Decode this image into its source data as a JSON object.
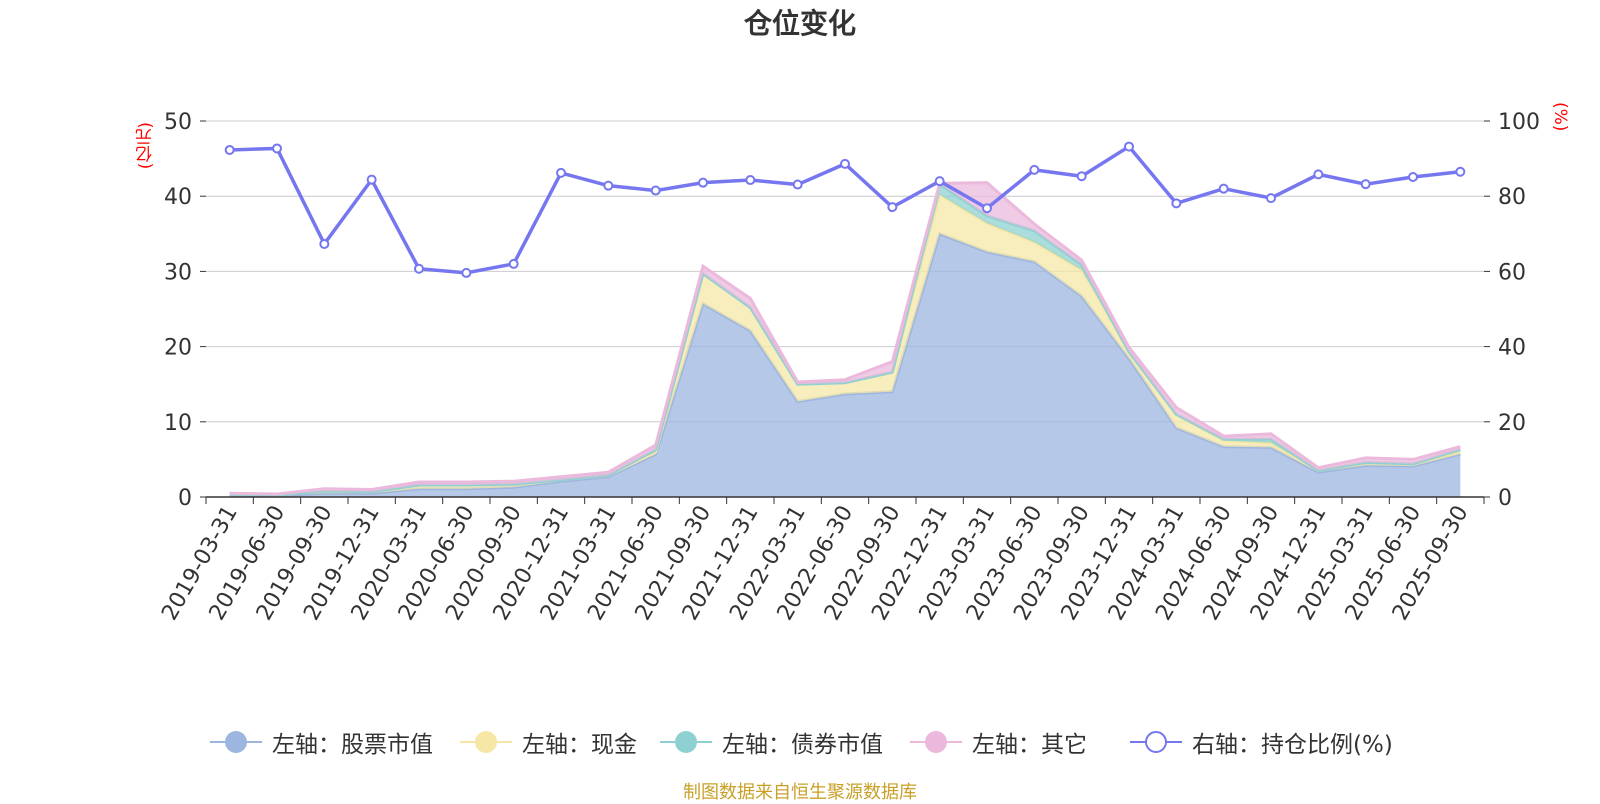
{
  "chart_data": {
    "type": "area",
    "title": "仓位变化",
    "left_unit": "(亿元)",
    "right_unit": "(%)",
    "left_ylim": [
      0,
      50
    ],
    "right_ylim": [
      0,
      100
    ],
    "left_ticks": [
      "0",
      "10",
      "20",
      "30",
      "40",
      "50"
    ],
    "right_ticks": [
      "0",
      "20",
      "40",
      "60",
      "80",
      "100"
    ],
    "categories": [
      "2019-03-31",
      "2019-06-30",
      "2019-09-30",
      "2019-12-31",
      "2020-03-31",
      "2020-06-30",
      "2020-09-30",
      "2020-12-31",
      "2021-03-31",
      "2021-06-30",
      "2021-09-30",
      "2021-12-31",
      "2022-03-31",
      "2022-06-30",
      "2022-09-30",
      "2022-12-31",
      "2023-03-31",
      "2023-06-30",
      "2023-09-30",
      "2023-12-31",
      "2024-03-31",
      "2024-06-30",
      "2024-09-30",
      "2024-12-31",
      "2025-03-31",
      "2025-06-30",
      "2025-09-30"
    ],
    "series": [
      {
        "name": "左轴：股票市值",
        "axis": "left",
        "stack": true,
        "color": "#9db6e0",
        "values": [
          0.3,
          0.2,
          0.5,
          0.5,
          1.1,
          1.1,
          1.3,
          2.1,
          2.7,
          5.7,
          25.7,
          22.1,
          12.7,
          13.7,
          14.0,
          35.0,
          32.6,
          31.3,
          26.7,
          18.4,
          9.2,
          6.7,
          6.6,
          3.3,
          4.2,
          4.1,
          5.7
        ]
      },
      {
        "name": "左轴：现金",
        "axis": "left",
        "stack": true,
        "color": "#f6e7a6",
        "values": [
          0.1,
          0.1,
          0.3,
          0.2,
          0.5,
          0.5,
          0.4,
          0.2,
          0.2,
          0.3,
          4.0,
          3.1,
          2.3,
          1.5,
          2.6,
          5.2,
          3.8,
          2.6,
          3.5,
          0.9,
          1.8,
          0.8,
          0.6,
          0.2,
          0.4,
          0.3,
          0.4
        ]
      },
      {
        "name": "左轴：债券市值",
        "axis": "left",
        "stack": true,
        "color": "#8fd1d2",
        "values": [
          0,
          0,
          0,
          0,
          0,
          0,
          0,
          0,
          0,
          0.3,
          0,
          0,
          0,
          0,
          0,
          1.4,
          1.0,
          1.5,
          0.7,
          0,
          0,
          0.2,
          0.5,
          0,
          0,
          0,
          0.2
        ]
      },
      {
        "name": "左轴：其它",
        "axis": "left",
        "stack": true,
        "color": "#ebb9dc",
        "values": [
          0.1,
          0.1,
          0.3,
          0.3,
          0.4,
          0.4,
          0.4,
          0.4,
          0.4,
          0.6,
          1.0,
          1.2,
          0.3,
          0.4,
          1.4,
          0.1,
          4.4,
          0.9,
          0.6,
          0.6,
          0.9,
          0.4,
          0.7,
          0.4,
          0.6,
          0.6,
          0.4
        ]
      },
      {
        "name": "右轴：持仓比例(%)",
        "axis": "right",
        "stack": false,
        "color": "#7677f0",
        "values": [
          92.3,
          92.7,
          67.3,
          84.4,
          60.7,
          59.6,
          62.0,
          86.2,
          82.8,
          81.5,
          83.6,
          84.3,
          83.1,
          88.6,
          77.1,
          84.0,
          76.8,
          87.0,
          85.3,
          93.2,
          78.1,
          82.0,
          79.5,
          85.8,
          83.2,
          85.1,
          86.5
        ]
      }
    ],
    "legend_position": "bottom",
    "grid": true
  },
  "source_note": "制图数据来自恒生聚源数据库"
}
